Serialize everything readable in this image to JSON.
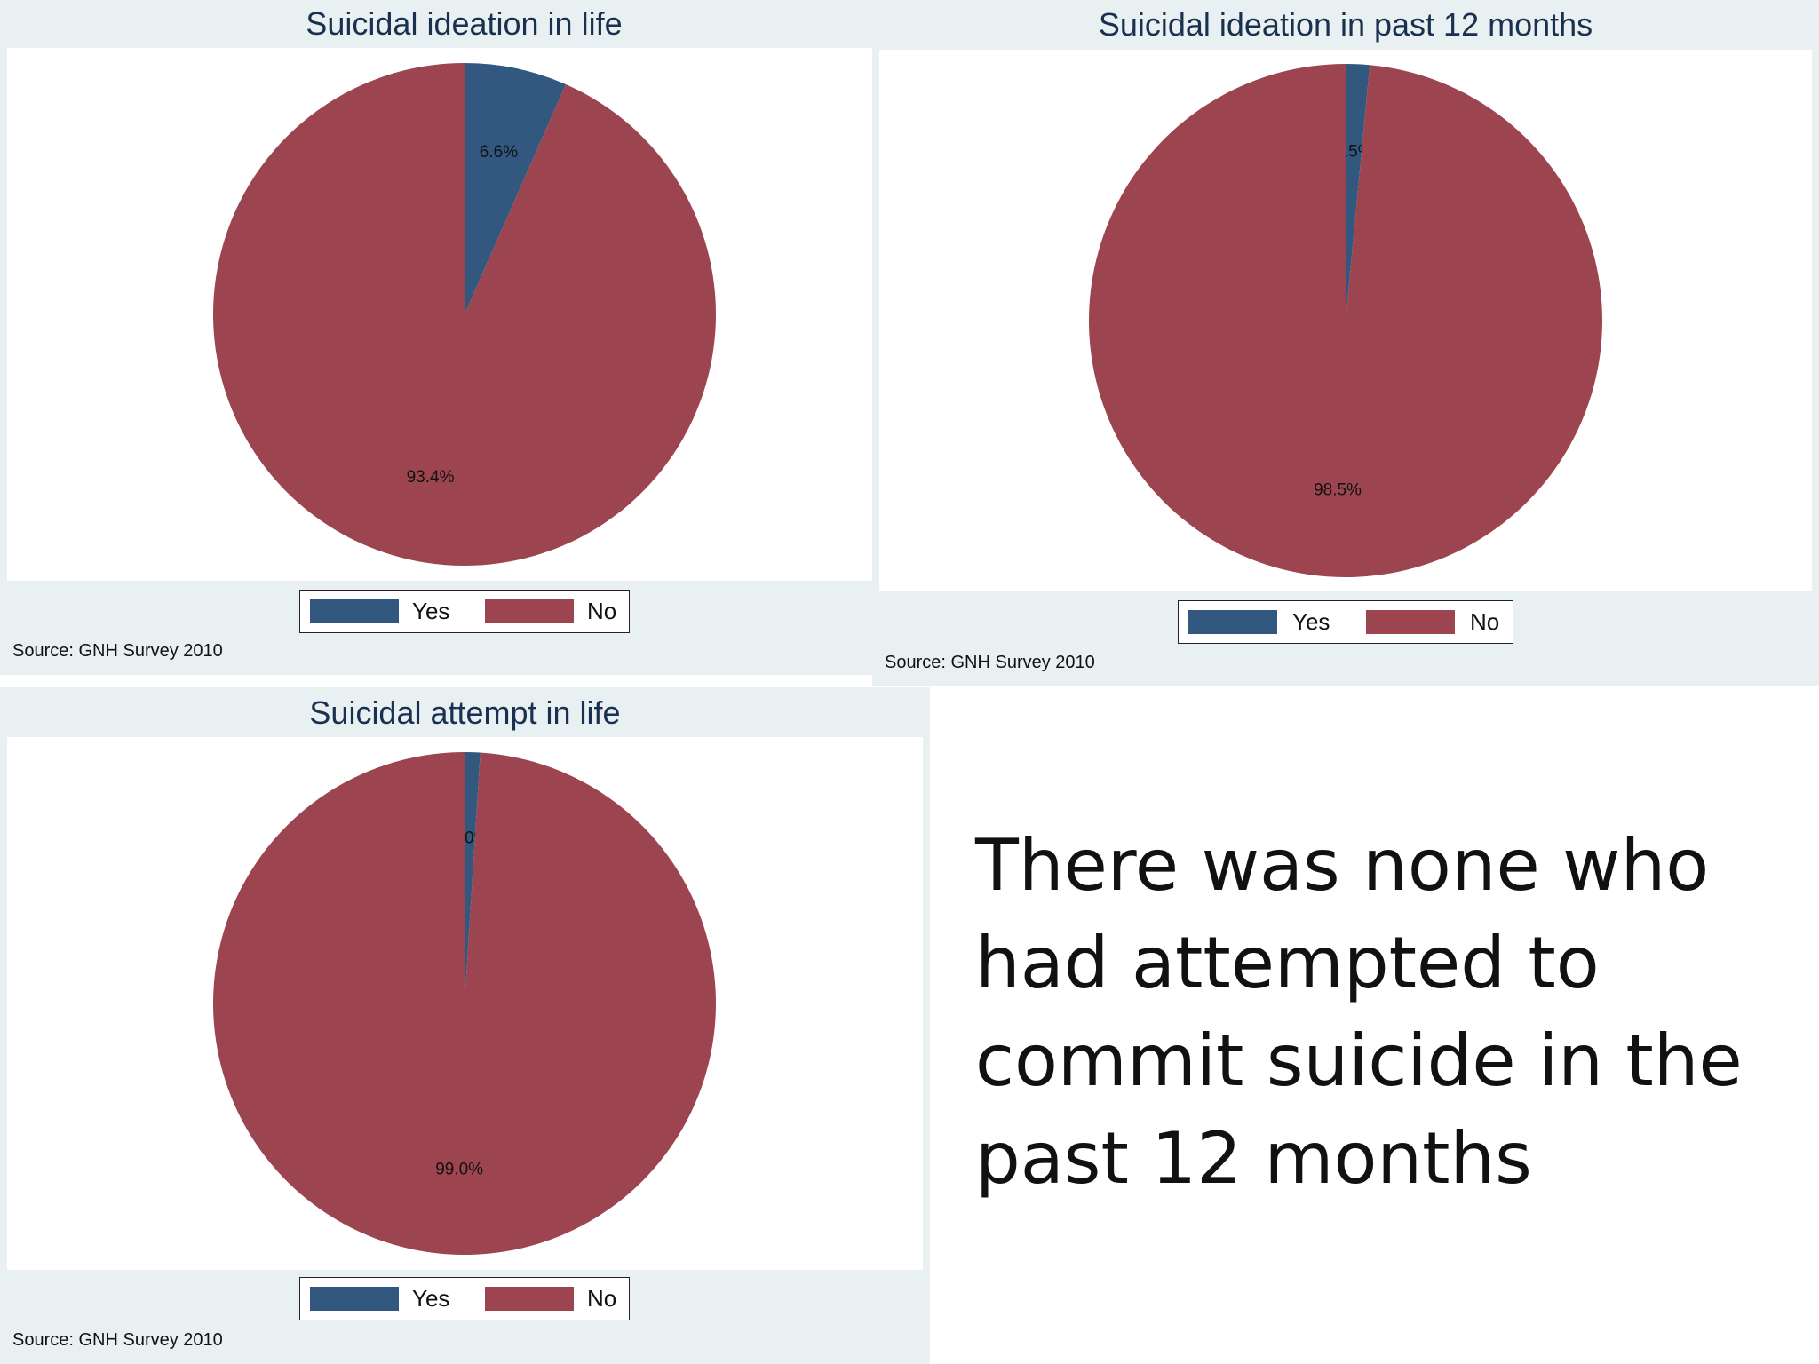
{
  "colors": {
    "yes": "#32587f",
    "no": "#9c4550",
    "panel_bg": "#e9f0f2",
    "title": "#1a3050"
  },
  "chart_data": [
    {
      "type": "pie",
      "title": "Suicidal ideation in life",
      "categories": [
        "Yes",
        "No"
      ],
      "values": [
        6.6,
        93.4
      ],
      "data_labels": [
        "6.6%",
        "93.4%"
      ],
      "legend": {
        "placement": "bottom",
        "labels": [
          "Yes",
          "No"
        ]
      },
      "note": "Source: GNH Survey 2010"
    },
    {
      "type": "pie",
      "title": "Suicidal ideation in past 12 months",
      "categories": [
        "Yes",
        "No"
      ],
      "values": [
        1.5,
        98.5
      ],
      "data_labels": [
        "1.5%",
        "98.5%"
      ],
      "legend": {
        "placement": "bottom",
        "labels": [
          "Yes",
          "No"
        ]
      },
      "note": "Source: GNH Survey 2010"
    },
    {
      "type": "pie",
      "title": "Suicidal attempt in life",
      "categories": [
        "Yes",
        "No"
      ],
      "values": [
        1.0,
        99.0
      ],
      "data_labels": [
        "1.0%",
        "99.0%"
      ],
      "legend": {
        "placement": "bottom",
        "labels": [
          "Yes",
          "No"
        ]
      },
      "note": "Source: GNH Survey 2010"
    }
  ],
  "statement": {
    "lines": [
      "There was none who",
      "had attempted to",
      "commit suicide in the",
      "past 12 months"
    ]
  }
}
